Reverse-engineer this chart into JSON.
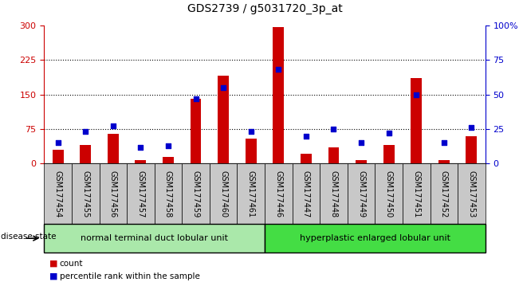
{
  "title": "GDS2739 / g5031720_3p_at",
  "samples": [
    "GSM177454",
    "GSM177455",
    "GSM177456",
    "GSM177457",
    "GSM177458",
    "GSM177459",
    "GSM177460",
    "GSM177461",
    "GSM177446",
    "GSM177447",
    "GSM177448",
    "GSM177449",
    "GSM177450",
    "GSM177451",
    "GSM177452",
    "GSM177453"
  ],
  "counts": [
    30,
    40,
    65,
    8,
    15,
    140,
    190,
    55,
    297,
    22,
    35,
    8,
    40,
    185,
    8,
    60
  ],
  "percentiles": [
    15,
    23,
    27,
    12,
    13,
    47,
    55,
    23,
    68,
    20,
    25,
    15,
    22,
    50,
    15,
    26
  ],
  "group1_label": "normal terminal duct lobular unit",
  "group2_label": "hyperplastic enlarged lobular unit",
  "group1_count": 8,
  "group2_count": 8,
  "ylim_left": [
    0,
    300
  ],
  "ylim_right": [
    0,
    100
  ],
  "yticks_left": [
    0,
    75,
    150,
    225,
    300
  ],
  "yticks_right": [
    0,
    25,
    50,
    75,
    100
  ],
  "left_axis_color": "#cc0000",
  "right_axis_color": "#0000cc",
  "bar_color": "#cc0000",
  "dot_color": "#0000cc",
  "group1_bg": "#aae8aa",
  "group2_bg": "#44dd44",
  "xticklabel_bg": "#c8c8c8",
  "legend_count_color": "#cc0000",
  "legend_pct_color": "#0000cc",
  "grid_color": "black",
  "title_fontsize": 10,
  "tick_fontsize": 8,
  "label_fontsize": 7,
  "group_fontsize": 8,
  "legend_fontsize": 7.5
}
